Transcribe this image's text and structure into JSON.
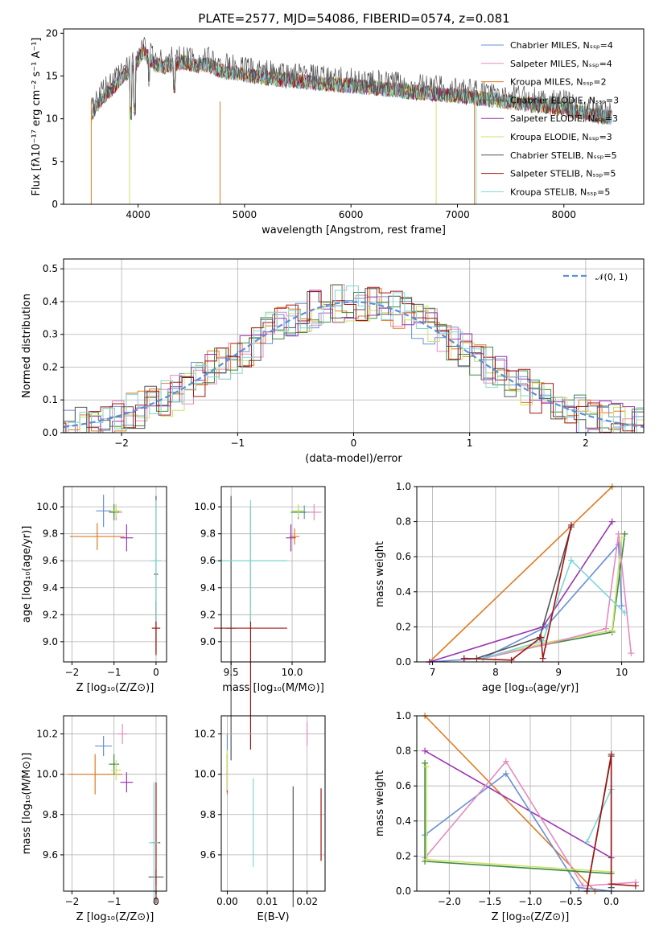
{
  "figure": {
    "title": "PLATE=2577, MJD=54086, FIBERID=0574, z=0.081"
  },
  "colors": {
    "Chabrier MILES": "#6a8fd6",
    "Salpeter MILES": "#e58ac2",
    "Kroupa MILES": "#e07a20",
    "Chabrier ELODIE": "#3f8a3f",
    "Salpeter ELODIE": "#9b35b0",
    "Kroupa ELODIE": "#c9e36a",
    "Chabrier STELIB": "#555555",
    "Salpeter STELIB": "#a01515",
    "Kroupa STELIB": "#7fd6d6"
  },
  "chart_data": [
    {
      "id": "spectrum",
      "type": "line",
      "title": "PLATE=2577, MJD=54086, FIBERID=0574, z=0.081",
      "xlabel": "wavelength [Angstrom, rest frame]",
      "ylabel": "Flux [fλ10⁻¹⁷ erg cm⁻² s⁻¹ A⁻¹]",
      "xlim": [
        3300,
        8750
      ],
      "ylim": [
        0,
        20.5
      ],
      "xticks": [
        4000,
        5000,
        6000,
        7000,
        8000
      ],
      "yticks": [
        0,
        5,
        10,
        15,
        20
      ],
      "grid": false,
      "legend": "top-right",
      "legend_entries": [
        "Chabrier MILES, Nₛₛₚ=4",
        "Salpeter MILES, Nₛₛₚ=4",
        "Kroupa MILES, Nₛₛₚ=2",
        "Chabrier ELODIE, Nₛₛₚ=3",
        "Salpeter ELODIE, Nₛₛₚ=3",
        "Kroupa ELODIE, Nₛₛₚ=3",
        "Chabrier STELIB, Nₛₛₚ=5",
        "Salpeter STELIB, Nₛₛₚ=5",
        "Kroupa STELIB, Nₛₛₚ=5"
      ],
      "series": [
        {
          "name": "Kroupa STELIB",
          "x": [
            3560,
            3650,
            3750,
            3850,
            3950,
            4050,
            4150,
            4250,
            4350,
            4450,
            4550,
            4650,
            4750,
            4850,
            4950,
            5050,
            5200,
            5400,
            5600,
            5800,
            6000,
            6200,
            6400,
            6600,
            6800,
            7000,
            7200,
            7400,
            7600,
            7800,
            8000,
            8200,
            8400
          ],
          "y": [
            11.5,
            12.5,
            14.5,
            15.2,
            16.0,
            17.5,
            16.8,
            16.5,
            16.7,
            16.9,
            16.4,
            16.6,
            16.0,
            15.8,
            15.6,
            15.4,
            15.3,
            15.0,
            14.7,
            14.5,
            14.3,
            14.0,
            13.8,
            13.5,
            13.4,
            13.1,
            12.8,
            12.5,
            12.2,
            12.0,
            11.5,
            11.0,
            10.5
          ]
        },
        {
          "name": "Chabrier STELIB",
          "x": [
            3560,
            3650,
            3750,
            3850,
            3950,
            4050,
            4150,
            4250,
            4350,
            4450,
            4550,
            4650,
            4750,
            4850,
            4950,
            5050,
            5200,
            5400,
            5600,
            5800,
            6000,
            6200,
            6400,
            6600,
            6800,
            7000,
            7200,
            7400,
            7600,
            7800,
            8000,
            8200,
            8400
          ],
          "y": [
            11.0,
            12.8,
            14.0,
            15.5,
            16.5,
            18.5,
            17.0,
            16.7,
            17.0,
            17.2,
            16.8,
            16.9,
            16.3,
            16.0,
            15.9,
            15.6,
            15.4,
            15.1,
            14.9,
            14.6,
            14.5,
            14.2,
            14.0,
            13.7,
            13.5,
            13.3,
            13.0,
            12.7,
            12.4,
            12.1,
            11.8,
            11.2,
            10.8
          ]
        }
      ]
    },
    {
      "id": "residuals",
      "type": "line",
      "xlabel": "(data-model)/error",
      "ylabel": "Normed distribution",
      "xlim": [
        -2.5,
        2.5
      ],
      "ylim": [
        0,
        0.53
      ],
      "xticks": [
        -2,
        -1,
        0,
        1,
        2
      ],
      "yticks": [
        0.0,
        0.1,
        0.2,
        0.3,
        0.4,
        0.5
      ],
      "grid": true,
      "legend": "top-right",
      "legend_entries": [
        "𝒩(0, 1)"
      ]
    },
    {
      "id": "age-vs-z",
      "type": "scatter",
      "xlabel": "Z [log₁₀(Z/Z⊙)]",
      "ylabel": "age [log₁₀(age/yr)]",
      "xlim": [
        -2.2,
        0.25
      ],
      "ylim": [
        8.85,
        10.15
      ],
      "xticks": [
        -2,
        -1,
        0
      ],
      "yticks": [
        9.0,
        9.2,
        9.4,
        9.6,
        9.8,
        10.0
      ],
      "grid": true
    },
    {
      "id": "age-vs-mass",
      "type": "scatter",
      "xlabel": "mass [log₁₀(M/M⊙)]",
      "xlim": [
        9.42,
        10.27
      ],
      "ylim": [
        8.85,
        10.15
      ],
      "xticks": [
        9.5,
        10.0
      ],
      "yticks": [
        9.0,
        9.2,
        9.4,
        9.6,
        9.8,
        10.0
      ],
      "grid": true
    },
    {
      "id": "weight-vs-age",
      "type": "line",
      "xlabel": "age [log₁₀(age/yr)]",
      "ylabel": "mass weight",
      "xlim": [
        6.75,
        10.35
      ],
      "ylim": [
        0,
        1.0
      ],
      "xticks": [
        7,
        8,
        9,
        10
      ],
      "yticks": [
        0.0,
        0.2,
        0.4,
        0.6,
        0.8,
        1.0
      ],
      "grid": true
    },
    {
      "id": "mass-vs-z",
      "type": "scatter",
      "xlabel": "Z [log₁₀(Z/Z⊙)]",
      "ylabel": "mass [log₁₀(M/M⊙)]",
      "xlim": [
        -2.2,
        0.25
      ],
      "ylim": [
        9.42,
        10.29
      ],
      "xticks": [
        -2,
        -1,
        0
      ],
      "yticks": [
        9.6,
        9.8,
        10.0,
        10.2
      ],
      "grid": true
    },
    {
      "id": "mass-vs-ebv",
      "type": "scatter",
      "xlabel": "E(B-V)",
      "xlim": [
        -0.0015,
        0.0245
      ],
      "ylim": [
        9.42,
        10.29
      ],
      "xticks": [
        0.0,
        0.01,
        0.02
      ],
      "yticks": [
        9.6,
        9.8,
        10.0,
        10.2
      ],
      "grid": true
    },
    {
      "id": "weight-vs-z",
      "type": "line",
      "xlabel": "Z [log₁₀(Z/Z⊙)]",
      "ylabel": "mass weight",
      "xlim": [
        -2.4,
        0.4
      ],
      "ylim": [
        0,
        1.0
      ],
      "xticks": [
        -2.0,
        -1.5,
        -1.0,
        -0.5,
        0.0
      ],
      "yticks": [
        0.0,
        0.2,
        0.4,
        0.6,
        0.8,
        1.0
      ],
      "grid": true
    }
  ]
}
